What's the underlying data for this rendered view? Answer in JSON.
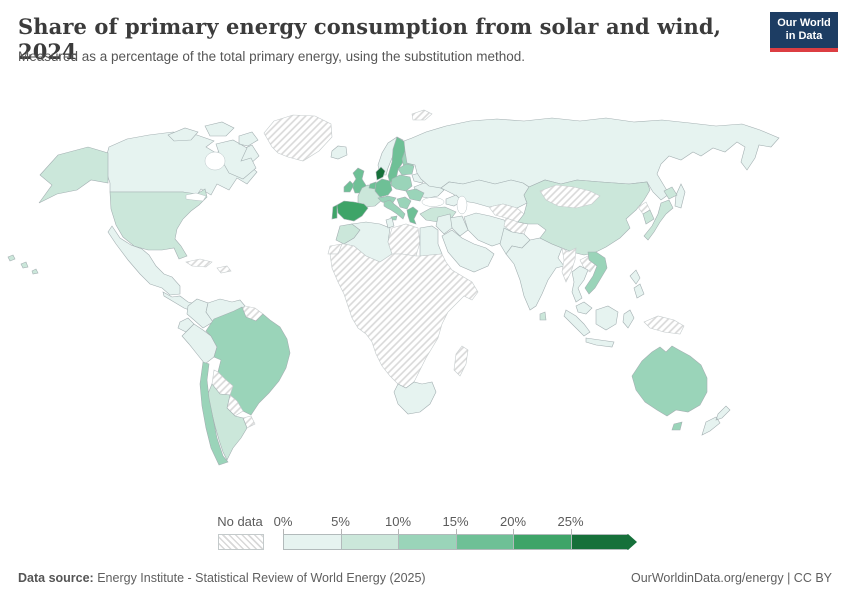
{
  "header": {
    "title": "Share of primary energy consumption from solar and wind, 2024",
    "subtitle": "Measured as a percentage of the total primary energy, using the substitution method.",
    "logo": {
      "line1": "Our World",
      "line2": "in Data",
      "bg_color": "#1d3d63",
      "accent_color": "#dc3e42"
    }
  },
  "legend": {
    "no_data_label": "No data",
    "ticks": [
      "0%",
      "5%",
      "10%",
      "15%",
      "20%",
      "25%"
    ],
    "bins": [
      {
        "range": "0-5%",
        "color": "#e6f3f0"
      },
      {
        "range": "5-10%",
        "color": "#cbe7da"
      },
      {
        "range": "10-15%",
        "color": "#9ad4b9"
      },
      {
        "range": "15-20%",
        "color": "#6ec096"
      },
      {
        "range": "20-25%",
        "color": "#3ea468"
      },
      {
        "range": "25%+",
        "color": "#16703a"
      }
    ],
    "no_data_hatch_color": "#d8d8d8"
  },
  "footer": {
    "source_label": "Data source:",
    "source_text": " Energy Institute - Statistical Review of World Energy (2025)",
    "right_text": "OurWorldinData.org/energy | CC BY"
  },
  "chart_data": {
    "type": "choropleth",
    "title": "Share of primary energy consumption from solar and wind, 2024",
    "subtitle": "Measured as a percentage of the total primary energy, using the substitution method.",
    "unit": "% of primary energy (substitution method)",
    "year": 2024,
    "legend_bins": [
      "0-5%",
      "5-10%",
      "10-15%",
      "15-20%",
      "20-25%",
      "25%+",
      "No data"
    ],
    "regions": [
      {
        "id": "greenland",
        "name": "Greenland",
        "bin": "No data"
      },
      {
        "id": "svalbard",
        "name": "Svalbard",
        "bin": "No data"
      },
      {
        "id": "iceland",
        "name": "Iceland",
        "bin": "0-5%"
      },
      {
        "id": "canada",
        "name": "Canada",
        "bin": "0-5%"
      },
      {
        "id": "canada-islands",
        "name": "Canada",
        "bin": "0-5%"
      },
      {
        "id": "alaska",
        "name": "United States",
        "bin": "5-10%"
      },
      {
        "id": "usa",
        "name": "United States",
        "bin": "5-10%"
      },
      {
        "id": "hawaii",
        "name": "United States",
        "bin": "5-10%"
      },
      {
        "id": "mexico",
        "name": "Mexico",
        "bin": "0-5%"
      },
      {
        "id": "central-america",
        "name": "Central America",
        "bin": "0-5%"
      },
      {
        "id": "cuba",
        "name": "Cuba",
        "bin": "No data"
      },
      {
        "id": "hispaniola",
        "name": "Hispaniola",
        "bin": "No data"
      },
      {
        "id": "colombia",
        "name": "Colombia",
        "bin": "0-5%"
      },
      {
        "id": "venezuela",
        "name": "Venezuela",
        "bin": "0-5%"
      },
      {
        "id": "guyanas",
        "name": "Guyana & Suriname",
        "bin": "No data"
      },
      {
        "id": "ecuador",
        "name": "Ecuador",
        "bin": "0-5%"
      },
      {
        "id": "peru",
        "name": "Peru",
        "bin": "0-5%"
      },
      {
        "id": "brazil",
        "name": "Brazil",
        "bin": "10-15%"
      },
      {
        "id": "bolivia",
        "name": "Bolivia",
        "bin": "No data"
      },
      {
        "id": "paraguay",
        "name": "Paraguay",
        "bin": "No data"
      },
      {
        "id": "uruguay",
        "name": "Uruguay",
        "bin": "No data"
      },
      {
        "id": "argentina",
        "name": "Argentina",
        "bin": "5-10%"
      },
      {
        "id": "chile",
        "name": "Chile",
        "bin": "10-15%"
      },
      {
        "id": "norway",
        "name": "Norway",
        "bin": "0-5%"
      },
      {
        "id": "sweden",
        "name": "Sweden",
        "bin": "15-20%"
      },
      {
        "id": "finland",
        "name": "Finland",
        "bin": "10-15%"
      },
      {
        "id": "denmark",
        "name": "Denmark",
        "bin": "25%+"
      },
      {
        "id": "uk",
        "name": "United Kingdom",
        "bin": "15-20%"
      },
      {
        "id": "ireland",
        "name": "Ireland",
        "bin": "15-20%"
      },
      {
        "id": "france",
        "name": "France",
        "bin": "5-10%"
      },
      {
        "id": "spain",
        "name": "Spain",
        "bin": "20-25%"
      },
      {
        "id": "portugal",
        "name": "Portugal",
        "bin": "20-25%"
      },
      {
        "id": "germany",
        "name": "Germany",
        "bin": "15-20%"
      },
      {
        "id": "benelux",
        "name": "Netherlands & Belgium",
        "bin": "15-20%"
      },
      {
        "id": "poland",
        "name": "Poland",
        "bin": "10-15%"
      },
      {
        "id": "baltics",
        "name": "Baltic states",
        "bin": "10-15%"
      },
      {
        "id": "belarus",
        "name": "Belarus",
        "bin": "0-5%"
      },
      {
        "id": "ukraine",
        "name": "Ukraine",
        "bin": "0-5%"
      },
      {
        "id": "central-europe",
        "name": "Central Europe",
        "bin": "10-15%"
      },
      {
        "id": "italy",
        "name": "Italy",
        "bin": "10-15%"
      },
      {
        "id": "balkans",
        "name": "Balkans",
        "bin": "10-15%"
      },
      {
        "id": "romania",
        "name": "Romania & Bulgaria",
        "bin": "10-15%"
      },
      {
        "id": "greece",
        "name": "Greece",
        "bin": "15-20%"
      },
      {
        "id": "turkey",
        "name": "Turkey",
        "bin": "5-10%"
      },
      {
        "id": "russia",
        "name": "Russia",
        "bin": "0-5%"
      },
      {
        "id": "sakhalin",
        "name": "Russia",
        "bin": "0-5%"
      },
      {
        "id": "kazakhstan",
        "name": "Kazakhstan",
        "bin": "0-5%"
      },
      {
        "id": "central-asia",
        "name": "Central Asia",
        "bin": "No data"
      },
      {
        "id": "caucasus",
        "name": "Caucasus",
        "bin": "0-5%"
      },
      {
        "id": "iran",
        "name": "Iran",
        "bin": "0-5%"
      },
      {
        "id": "iraq",
        "name": "Iraq",
        "bin": "0-5%"
      },
      {
        "id": "levant",
        "name": "Levant",
        "bin": "0-5%"
      },
      {
        "id": "saudi-arabia",
        "name": "Saudi Arabia",
        "bin": "0-5%"
      },
      {
        "id": "afghanistan",
        "name": "Afghanistan",
        "bin": "No data"
      },
      {
        "id": "pakistan",
        "name": "Pakistan",
        "bin": "0-5%"
      },
      {
        "id": "india",
        "name": "India",
        "bin": "0-5%"
      },
      {
        "id": "sri-lanka",
        "name": "Sri Lanka",
        "bin": "5-10%"
      },
      {
        "id": "china",
        "name": "China",
        "bin": "5-10%"
      },
      {
        "id": "mongolia",
        "name": "Mongolia",
        "bin": "No data"
      },
      {
        "id": "north-korea",
        "name": "North Korea",
        "bin": "No data"
      },
      {
        "id": "south-korea",
        "name": "South Korea",
        "bin": "5-10%"
      },
      {
        "id": "japan",
        "name": "Japan",
        "bin": "5-10%"
      },
      {
        "id": "myanmar",
        "name": "Myanmar",
        "bin": "No data"
      },
      {
        "id": "laos",
        "name": "Laos",
        "bin": "No data"
      },
      {
        "id": "thailand",
        "name": "Thailand",
        "bin": "0-5%"
      },
      {
        "id": "vietnam",
        "name": "Vietnam",
        "bin": "10-15%"
      },
      {
        "id": "malaysia",
        "name": "Malaysia",
        "bin": "0-5%"
      },
      {
        "id": "indonesia",
        "name": "Indonesia",
        "bin": "0-5%"
      },
      {
        "id": "philippines",
        "name": "Philippines",
        "bin": "0-5%"
      },
      {
        "id": "new-guinea",
        "name": "Papua New Guinea",
        "bin": "No data"
      },
      {
        "id": "morocco",
        "name": "Morocco",
        "bin": "5-10%"
      },
      {
        "id": "western-sahara",
        "name": "Western Sahara",
        "bin": "No data"
      },
      {
        "id": "algeria",
        "name": "Algeria",
        "bin": "0-5%"
      },
      {
        "id": "tunisia",
        "name": "Tunisia",
        "bin": "0-5%"
      },
      {
        "id": "libya",
        "name": "Libya",
        "bin": "No data"
      },
      {
        "id": "egypt",
        "name": "Egypt",
        "bin": "0-5%"
      },
      {
        "id": "africa-subsaharan",
        "name": "Sub-Saharan Africa",
        "bin": "No data"
      },
      {
        "id": "south-africa",
        "name": "South Africa",
        "bin": "0-5%"
      },
      {
        "id": "madagascar",
        "name": "Madagascar",
        "bin": "No data"
      },
      {
        "id": "australia",
        "name": "Australia",
        "bin": "10-15%"
      },
      {
        "id": "tasmania",
        "name": "Australia",
        "bin": "10-15%"
      },
      {
        "id": "new-zealand",
        "name": "New Zealand",
        "bin": "0-5%"
      }
    ]
  }
}
